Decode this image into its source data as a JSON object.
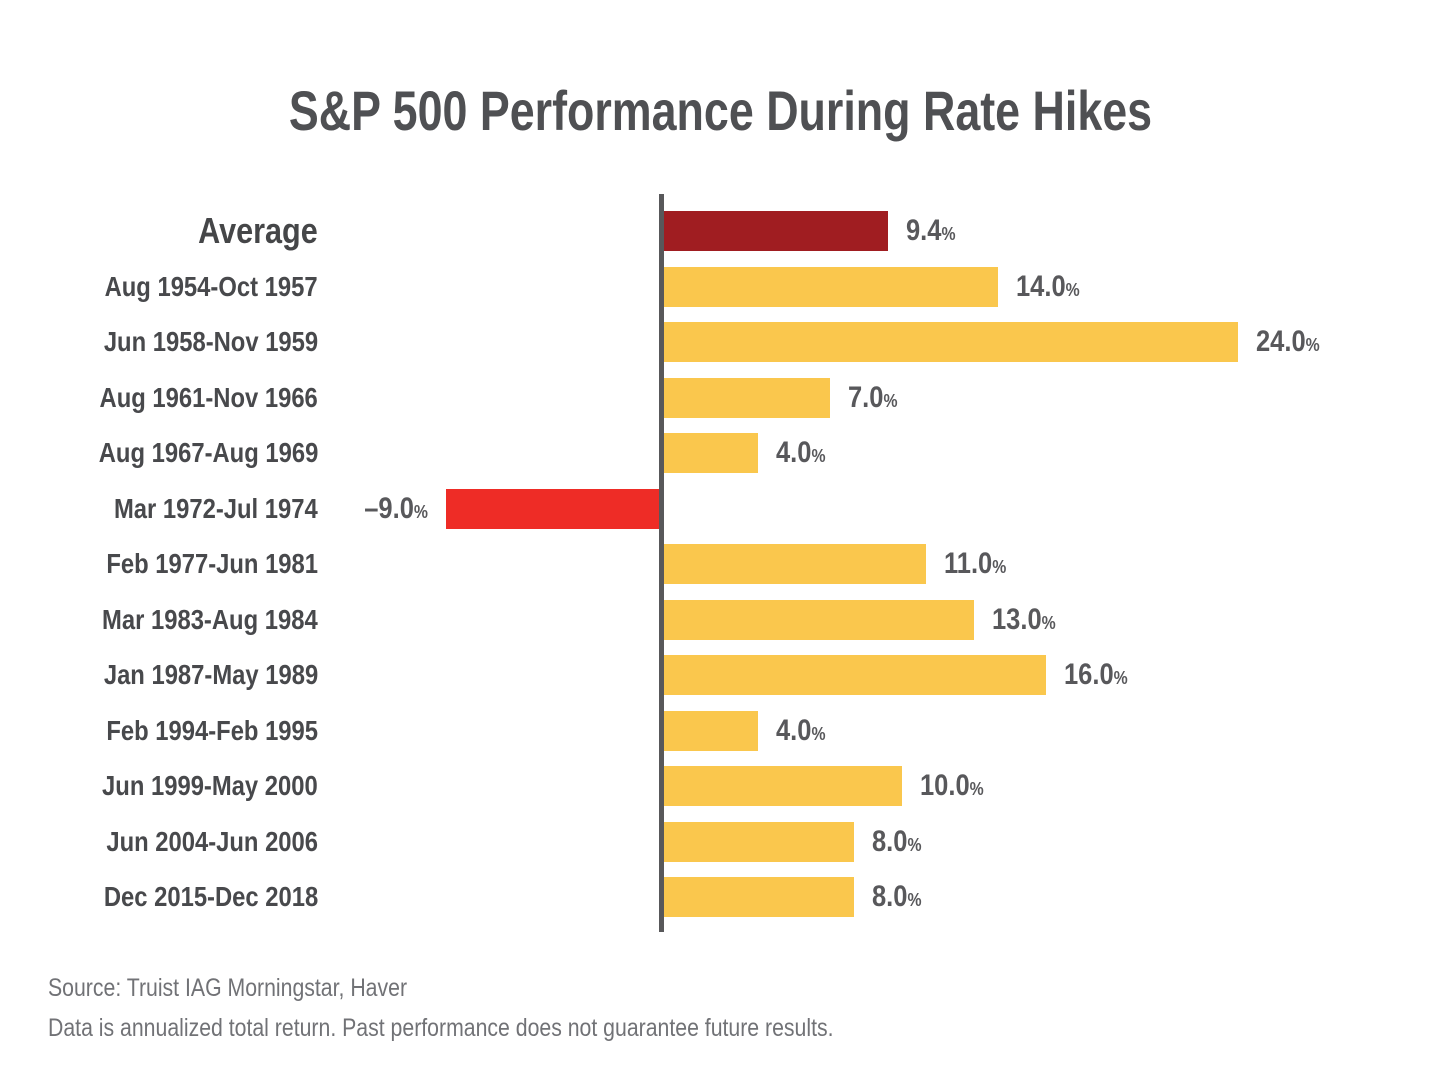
{
  "title": "S&P 500 Performance During Rate Hikes",
  "footer": {
    "line1": "Source: Truist IAG Morningstar, Haver",
    "line2": "Data is annualized total return. Past performance does not guarantee future results."
  },
  "colors": {
    "average_bar": "#A01D21",
    "positive_bar": "#FAC74D",
    "negative_bar": "#EE2C26",
    "axis": "#58585A",
    "category_text": "#48494C",
    "value_text": "#58585B",
    "title_text": "#4F5053",
    "footer_text": "#717276"
  },
  "chart_data": {
    "type": "bar",
    "orientation": "horizontal",
    "title": "S&P 500 Performance During Rate Hikes",
    "xlabel": "",
    "ylabel": "",
    "units": "percent (annualized total return)",
    "xlim": [
      -9,
      24
    ],
    "grid": false,
    "legend": null,
    "rows": [
      {
        "label": "Average",
        "value": 9.4,
        "value_text": "9.4",
        "value_suffix": "%",
        "color_key": "average_bar",
        "emphasis": true
      },
      {
        "label": "Aug 1954-Oct 1957",
        "value": 14.0,
        "value_text": "14.0",
        "value_suffix": "%",
        "color_key": "positive_bar",
        "emphasis": false
      },
      {
        "label": "Jun 1958-Nov 1959",
        "value": 24.0,
        "value_text": "24.0",
        "value_suffix": "%",
        "color_key": "positive_bar",
        "emphasis": false
      },
      {
        "label": "Aug 1961-Nov 1966",
        "value": 7.0,
        "value_text": "7.0",
        "value_suffix": "%",
        "color_key": "positive_bar",
        "emphasis": false
      },
      {
        "label": "Aug 1967-Aug 1969",
        "value": 4.0,
        "value_text": "4.0",
        "value_suffix": "%",
        "color_key": "positive_bar",
        "emphasis": false
      },
      {
        "label": "Mar 1972-Jul 1974",
        "value": -9.0,
        "value_text": "–9.0",
        "value_suffix": "%",
        "color_key": "negative_bar",
        "emphasis": false
      },
      {
        "label": "Feb 1977-Jun 1981",
        "value": 11.0,
        "value_text": "11.0",
        "value_suffix": "%",
        "color_key": "positive_bar",
        "emphasis": false
      },
      {
        "label": "Mar 1983-Aug 1984",
        "value": 13.0,
        "value_text": "13.0",
        "value_suffix": "%",
        "color_key": "positive_bar",
        "emphasis": false
      },
      {
        "label": "Jan 1987-May 1989",
        "value": 16.0,
        "value_text": "16.0",
        "value_suffix": "%",
        "color_key": "positive_bar",
        "emphasis": false
      },
      {
        "label": "Feb 1994-Feb 1995",
        "value": 4.0,
        "value_text": "4.0",
        "value_suffix": "%",
        "color_key": "positive_bar",
        "emphasis": false
      },
      {
        "label": "Jun 1999-May 2000",
        "value": 10.0,
        "value_text": "10.0",
        "value_suffix": "%",
        "color_key": "positive_bar",
        "emphasis": false
      },
      {
        "label": "Jun 2004-Jun 2006",
        "value": 8.0,
        "value_text": "8.0",
        "value_suffix": "%",
        "color_key": "positive_bar",
        "emphasis": false
      },
      {
        "label": "Dec 2015-Dec 2018",
        "value": 8.0,
        "value_text": "8.0",
        "value_suffix": "%",
        "color_key": "positive_bar",
        "emphasis": false
      }
    ]
  }
}
